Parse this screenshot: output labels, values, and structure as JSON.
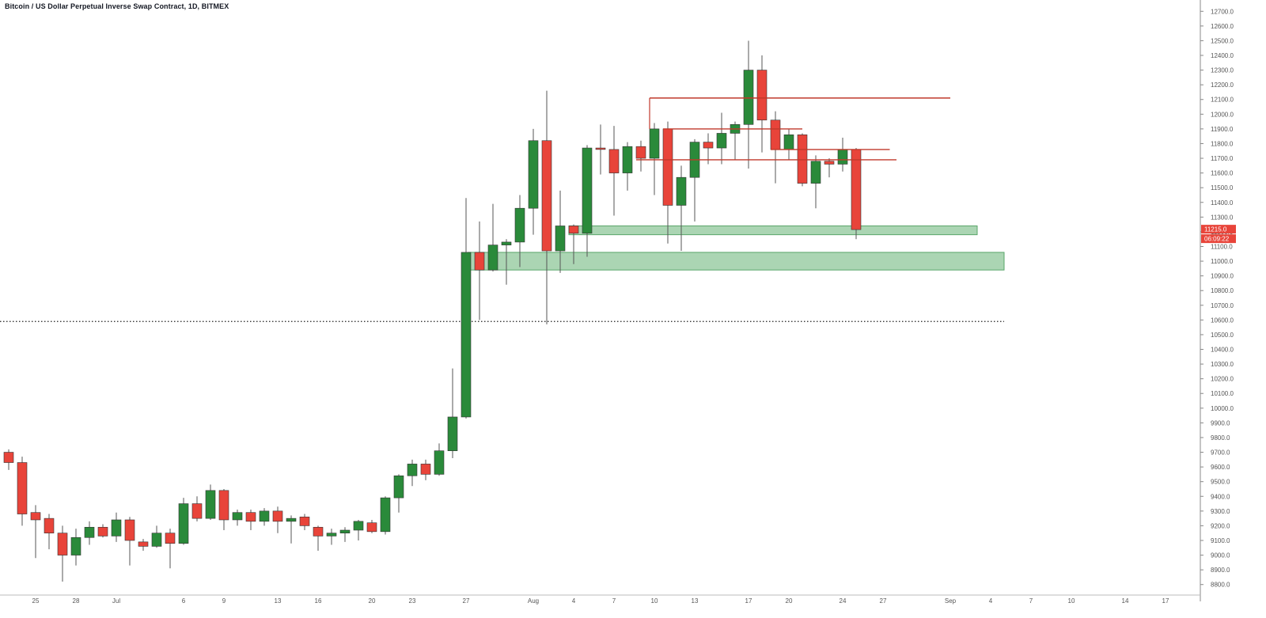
{
  "header": {
    "title": "Bitcoin / US Dollar Perpetual Inverse Swap Contract, 1D, BITMEX"
  },
  "price_badge": {
    "value": "11215.0",
    "countdown": "06:09:22"
  },
  "colors": {
    "up": "#2a8a3a",
    "down": "#e8443a",
    "wick": "#555555",
    "resistance_line": "#c0392b",
    "support_zone_fill": "#8fc79a",
    "support_zone_stroke": "#5aa66a",
    "badge_bg": "#e8443a",
    "axis_text": "#555555"
  },
  "chart_data": {
    "type": "candlestick",
    "title": "Bitcoin / US Dollar Perpetual Inverse Swap Contract, 1D, BITMEX",
    "ylim": [
      8750,
      12750
    ],
    "y_ticks": [
      8800,
      8900,
      9000,
      9100,
      9200,
      9300,
      9400,
      9500,
      9600,
      9700,
      9800,
      9900,
      10000,
      10100,
      10200,
      10300,
      10400,
      10500,
      10600,
      10700,
      10800,
      10900,
      11000,
      11100,
      11200,
      11300,
      11400,
      11500,
      11600,
      11700,
      11800,
      11900,
      12000,
      12100,
      12200,
      12300,
      12400,
      12500,
      12600,
      12700
    ],
    "x_ticks": [
      {
        "label": "25",
        "i": 2
      },
      {
        "label": "28",
        "i": 5
      },
      {
        "label": "Jul",
        "i": 8
      },
      {
        "label": "6",
        "i": 13
      },
      {
        "label": "9",
        "i": 16
      },
      {
        "label": "13",
        "i": 20
      },
      {
        "label": "16",
        "i": 23
      },
      {
        "label": "20",
        "i": 27
      },
      {
        "label": "23",
        "i": 30
      },
      {
        "label": "27",
        "i": 34
      },
      {
        "label": "Aug",
        "i": 39
      },
      {
        "label": "4",
        "i": 42
      },
      {
        "label": "7",
        "i": 45
      },
      {
        "label": "10",
        "i": 48
      },
      {
        "label": "13",
        "i": 51
      },
      {
        "label": "17",
        "i": 55
      },
      {
        "label": "20",
        "i": 58
      },
      {
        "label": "24",
        "i": 62
      },
      {
        "label": "27",
        "i": 65
      },
      {
        "label": "Sep",
        "i": 70
      },
      {
        "label": "4",
        "i": 73
      },
      {
        "label": "7",
        "i": 76
      },
      {
        "label": "10",
        "i": 79
      },
      {
        "label": "14",
        "i": 83
      },
      {
        "label": "17",
        "i": 86
      }
    ],
    "candles": [
      {
        "o": 9700,
        "h": 9720,
        "l": 9580,
        "c": 9630
      },
      {
        "o": 9630,
        "h": 9670,
        "l": 9200,
        "c": 9280
      },
      {
        "o": 9290,
        "h": 9340,
        "l": 8980,
        "c": 9240
      },
      {
        "o": 9250,
        "h": 9280,
        "l": 9040,
        "c": 9150
      },
      {
        "o": 9150,
        "h": 9200,
        "l": 8820,
        "c": 9000
      },
      {
        "o": 9000,
        "h": 9180,
        "l": 8930,
        "c": 9120
      },
      {
        "o": 9120,
        "h": 9230,
        "l": 9070,
        "c": 9190
      },
      {
        "o": 9190,
        "h": 9210,
        "l": 9120,
        "c": 9130
      },
      {
        "o": 9130,
        "h": 9290,
        "l": 9090,
        "c": 9240
      },
      {
        "o": 9240,
        "h": 9260,
        "l": 8930,
        "c": 9100
      },
      {
        "o": 9090,
        "h": 9110,
        "l": 9030,
        "c": 9060
      },
      {
        "o": 9060,
        "h": 9200,
        "l": 9050,
        "c": 9150
      },
      {
        "o": 9150,
        "h": 9180,
        "l": 8910,
        "c": 9080
      },
      {
        "o": 9080,
        "h": 9390,
        "l": 9070,
        "c": 9350
      },
      {
        "o": 9350,
        "h": 9400,
        "l": 9230,
        "c": 9250
      },
      {
        "o": 9250,
        "h": 9480,
        "l": 9240,
        "c": 9440
      },
      {
        "o": 9440,
        "h": 9450,
        "l": 9170,
        "c": 9240
      },
      {
        "o": 9240,
        "h": 9310,
        "l": 9200,
        "c": 9290
      },
      {
        "o": 9290,
        "h": 9310,
        "l": 9170,
        "c": 9230
      },
      {
        "o": 9230,
        "h": 9320,
        "l": 9200,
        "c": 9300
      },
      {
        "o": 9300,
        "h": 9330,
        "l": 9150,
        "c": 9230
      },
      {
        "o": 9230,
        "h": 9270,
        "l": 9080,
        "c": 9250
      },
      {
        "o": 9260,
        "h": 9280,
        "l": 9170,
        "c": 9200
      },
      {
        "o": 9190,
        "h": 9200,
        "l": 9030,
        "c": 9130
      },
      {
        "o": 9130,
        "h": 9180,
        "l": 9070,
        "c": 9150
      },
      {
        "o": 9150,
        "h": 9190,
        "l": 9090,
        "c": 9170
      },
      {
        "o": 9170,
        "h": 9240,
        "l": 9100,
        "c": 9230
      },
      {
        "o": 9220,
        "h": 9240,
        "l": 9150,
        "c": 9160
      },
      {
        "o": 9160,
        "h": 9400,
        "l": 9140,
        "c": 9390
      },
      {
        "o": 9390,
        "h": 9550,
        "l": 9290,
        "c": 9540
      },
      {
        "o": 9540,
        "h": 9650,
        "l": 9470,
        "c": 9620
      },
      {
        "o": 9620,
        "h": 9650,
        "l": 9510,
        "c": 9550
      },
      {
        "o": 9550,
        "h": 9760,
        "l": 9540,
        "c": 9710
      },
      {
        "o": 9710,
        "h": 10270,
        "l": 9660,
        "c": 9940
      },
      {
        "o": 9940,
        "h": 11430,
        "l": 9930,
        "c": 11060
      },
      {
        "o": 11060,
        "h": 11270,
        "l": 10600,
        "c": 10940
      },
      {
        "o": 10940,
        "h": 11390,
        "l": 10930,
        "c": 11110
      },
      {
        "o": 11110,
        "h": 11150,
        "l": 10840,
        "c": 11130
      },
      {
        "o": 11130,
        "h": 11450,
        "l": 10960,
        "c": 11360
      },
      {
        "o": 11360,
        "h": 11900,
        "l": 11180,
        "c": 11820
      },
      {
        "o": 11820,
        "h": 12160,
        "l": 10570,
        "c": 11070
      },
      {
        "o": 11070,
        "h": 11480,
        "l": 10920,
        "c": 11240
      },
      {
        "o": 11240,
        "h": 11250,
        "l": 10980,
        "c": 11190
      },
      {
        "o": 11190,
        "h": 11790,
        "l": 11030,
        "c": 11770
      },
      {
        "o": 11770,
        "h": 11930,
        "l": 11590,
        "c": 11760
      },
      {
        "o": 11760,
        "h": 11920,
        "l": 11310,
        "c": 11600
      },
      {
        "o": 11600,
        "h": 11810,
        "l": 11480,
        "c": 11780
      },
      {
        "o": 11780,
        "h": 11820,
        "l": 11610,
        "c": 11700
      },
      {
        "o": 11700,
        "h": 11940,
        "l": 11450,
        "c": 11900
      },
      {
        "o": 11900,
        "h": 11950,
        "l": 11120,
        "c": 11380
      },
      {
        "o": 11380,
        "h": 11650,
        "l": 11070,
        "c": 11570
      },
      {
        "o": 11570,
        "h": 11830,
        "l": 11270,
        "c": 11810
      },
      {
        "o": 11810,
        "h": 11870,
        "l": 11660,
        "c": 11770
      },
      {
        "o": 11770,
        "h": 12010,
        "l": 11660,
        "c": 11870
      },
      {
        "o": 11870,
        "h": 11950,
        "l": 11690,
        "c": 11930
      },
      {
        "o": 11930,
        "h": 12500,
        "l": 11630,
        "c": 12300
      },
      {
        "o": 12300,
        "h": 12400,
        "l": 11740,
        "c": 11960
      },
      {
        "o": 11960,
        "h": 12020,
        "l": 11530,
        "c": 11760
      },
      {
        "o": 11760,
        "h": 11900,
        "l": 11690,
        "c": 11860
      },
      {
        "o": 11860,
        "h": 11870,
        "l": 11510,
        "c": 11530
      },
      {
        "o": 11530,
        "h": 11720,
        "l": 11360,
        "c": 11680
      },
      {
        "o": 11680,
        "h": 11700,
        "l": 11570,
        "c": 11660
      },
      {
        "o": 11660,
        "h": 11840,
        "l": 11610,
        "c": 11760
      },
      {
        "o": 11760,
        "h": 11770,
        "l": 11150,
        "c": 11215
      }
    ],
    "resistance_lines": [
      {
        "value": 12110,
        "from_i": 48,
        "to_i": 70
      },
      {
        "value": 11900,
        "from_i": 49,
        "to_i": 59
      },
      {
        "value": 11760,
        "from_i": 57,
        "to_i": 65.5
      },
      {
        "value": 11690,
        "from_i": 47,
        "to_i": 66
      }
    ],
    "support_zones": [
      {
        "low": 11180,
        "high": 11240,
        "from_i": 42,
        "to_i": 72
      },
      {
        "low": 10940,
        "high": 11060,
        "from_i": 34.5,
        "to_i": 74
      }
    ],
    "reference_line": {
      "value": 10590
    }
  }
}
